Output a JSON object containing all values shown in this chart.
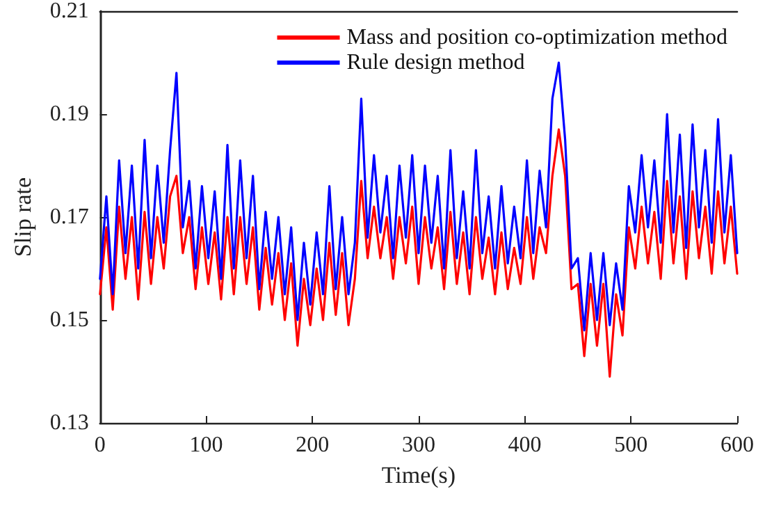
{
  "chart_data": {
    "type": "line",
    "xlabel": "Time(s)",
    "ylabel": "Slip rate",
    "xlim": [
      0,
      600
    ],
    "xticks": [
      0,
      100,
      200,
      300,
      400,
      500,
      600
    ],
    "ylim": [
      0.13,
      0.21
    ],
    "yticks": [
      0.13,
      0.15,
      0.17,
      0.19,
      0.21
    ],
    "grid": false,
    "legend": "top right",
    "marker": "none",
    "line_style": "solid",
    "x": [
      0,
      6,
      12,
      18,
      24,
      30,
      36,
      42,
      48,
      54,
      60,
      66,
      72,
      78,
      84,
      90,
      96,
      102,
      108,
      114,
      120,
      126,
      132,
      138,
      144,
      150,
      156,
      162,
      168,
      174,
      180,
      186,
      192,
      198,
      204,
      210,
      216,
      222,
      228,
      234,
      240,
      246,
      252,
      258,
      264,
      270,
      276,
      282,
      288,
      294,
      300,
      306,
      312,
      318,
      324,
      330,
      336,
      342,
      348,
      354,
      360,
      366,
      372,
      378,
      384,
      390,
      396,
      402,
      408,
      414,
      420,
      426,
      432,
      438,
      444,
      450,
      456,
      462,
      468,
      474,
      480,
      486,
      492,
      498,
      504,
      510,
      516,
      522,
      528,
      534,
      540,
      546,
      552,
      558,
      564,
      570,
      576,
      582,
      588,
      594,
      600
    ],
    "series": [
      {
        "name": "Mass and position co-optimization method",
        "color": "#ff0000",
        "values": [
          0.155,
          0.168,
          0.152,
          0.172,
          0.158,
          0.17,
          0.154,
          0.171,
          0.157,
          0.17,
          0.16,
          0.174,
          0.178,
          0.163,
          0.17,
          0.156,
          0.168,
          0.157,
          0.167,
          0.154,
          0.17,
          0.155,
          0.17,
          0.157,
          0.168,
          0.152,
          0.164,
          0.153,
          0.163,
          0.15,
          0.161,
          0.145,
          0.158,
          0.149,
          0.16,
          0.15,
          0.165,
          0.151,
          0.163,
          0.149,
          0.158,
          0.177,
          0.162,
          0.172,
          0.162,
          0.17,
          0.158,
          0.17,
          0.161,
          0.172,
          0.157,
          0.17,
          0.16,
          0.168,
          0.156,
          0.171,
          0.157,
          0.167,
          0.155,
          0.17,
          0.158,
          0.166,
          0.155,
          0.167,
          0.156,
          0.164,
          0.157,
          0.17,
          0.158,
          0.168,
          0.163,
          0.178,
          0.187,
          0.178,
          0.156,
          0.157,
          0.143,
          0.157,
          0.145,
          0.157,
          0.139,
          0.155,
          0.147,
          0.168,
          0.16,
          0.172,
          0.161,
          0.171,
          0.158,
          0.177,
          0.161,
          0.174,
          0.158,
          0.175,
          0.162,
          0.172,
          0.159,
          0.175,
          0.161,
          0.172,
          0.159
        ]
      },
      {
        "name": "Rule design method",
        "color": "#0000ff",
        "values": [
          0.158,
          0.174,
          0.155,
          0.181,
          0.163,
          0.18,
          0.16,
          0.185,
          0.162,
          0.18,
          0.165,
          0.183,
          0.198,
          0.168,
          0.177,
          0.16,
          0.176,
          0.162,
          0.175,
          0.158,
          0.184,
          0.16,
          0.181,
          0.162,
          0.178,
          0.156,
          0.171,
          0.158,
          0.17,
          0.155,
          0.168,
          0.15,
          0.165,
          0.153,
          0.167,
          0.155,
          0.176,
          0.156,
          0.17,
          0.155,
          0.165,
          0.193,
          0.166,
          0.182,
          0.167,
          0.178,
          0.162,
          0.18,
          0.166,
          0.182,
          0.163,
          0.18,
          0.165,
          0.178,
          0.16,
          0.183,
          0.162,
          0.175,
          0.16,
          0.183,
          0.163,
          0.174,
          0.16,
          0.176,
          0.161,
          0.172,
          0.162,
          0.181,
          0.163,
          0.179,
          0.168,
          0.193,
          0.2,
          0.185,
          0.16,
          0.162,
          0.148,
          0.163,
          0.15,
          0.163,
          0.149,
          0.161,
          0.152,
          0.176,
          0.167,
          0.182,
          0.168,
          0.181,
          0.165,
          0.19,
          0.167,
          0.186,
          0.164,
          0.188,
          0.168,
          0.183,
          0.165,
          0.189,
          0.167,
          0.182,
          0.163
        ]
      }
    ]
  }
}
